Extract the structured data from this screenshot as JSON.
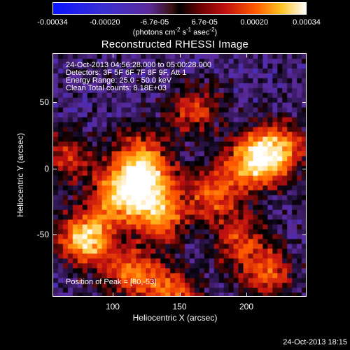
{
  "colorbar": {
    "ticks": [
      "-0.00034",
      "-0.00020",
      "-6.7e-05",
      "6.7e-05",
      "0.00020",
      "0.00034"
    ],
    "units": {
      "prefix": "(photons cm",
      "e1": "-2",
      "mid1": " s",
      "e2": "-1",
      "mid2": " asec",
      "e3": "-2",
      "suffix": ")"
    },
    "palette": [
      "#0a14ff",
      "#3a2fd0",
      "#5a2a9a",
      "#000000",
      "#c01010",
      "#ff5a00",
      "#ffc020",
      "#ffffff"
    ]
  },
  "plot": {
    "title": "Reconstructed RHESSI Image",
    "info_lines": [
      "24-Oct-2013 04:56:28.000 to 05:00:28.000",
      "Detectors: 3F 5F 6F 7F 8F 9F, Att 1",
      "Energy Range: 25.0 - 50.0 keV",
      "Clean     Total counts: 8.18E+03"
    ],
    "peak_position": "Position of Peak = [80,-53]",
    "xlabel": "Heliocentric X (arcsec)",
    "ylabel": "Heliocentric Y (arcsec)",
    "xticks": [
      "100",
      "150",
      "200"
    ],
    "yticks": [
      "50",
      "0",
      "-50"
    ]
  },
  "chart_data": {
    "type": "heatmap",
    "title": "Reconstructed RHESSI Image",
    "xlabel": "Heliocentric X (arcsec)",
    "ylabel": "Heliocentric Y (arcsec)",
    "xlim": [
      55,
      245
    ],
    "ylim": [
      -97,
      87
    ],
    "colorbar_range": [
      -0.00034,
      0.00034
    ],
    "colorbar_ticks": [
      -0.00034,
      -0.0002,
      -6.7e-05,
      6.7e-05,
      0.0002,
      0.00034
    ],
    "sources": [
      {
        "x": 80,
        "y": -53,
        "value": 0.00034
      },
      {
        "x": 105,
        "y": -20,
        "value": 0.00028
      },
      {
        "x": 125,
        "y": -10,
        "value": 0.00026
      },
      {
        "x": 135,
        "y": -35,
        "value": 0.00025
      },
      {
        "x": 115,
        "y": -80,
        "value": 0.00022
      },
      {
        "x": 175,
        "y": -20,
        "value": 0.0002
      },
      {
        "x": 205,
        "y": 5,
        "value": 0.0003
      },
      {
        "x": 225,
        "y": 15,
        "value": 0.00025
      },
      {
        "x": 160,
        "y": 45,
        "value": 0.00016
      },
      {
        "x": 120,
        "y": 10,
        "value": 0.00018
      },
      {
        "x": 195,
        "y": -55,
        "value": 0.00017
      },
      {
        "x": 215,
        "y": -80,
        "value": 0.00018
      },
      {
        "x": 65,
        "y": 10,
        "value": 0.00015
      },
      {
        "x": 145,
        "y": -95,
        "value": 0.0002
      }
    ]
  },
  "footer": {
    "date": "24-Oct-2013 18:15"
  }
}
